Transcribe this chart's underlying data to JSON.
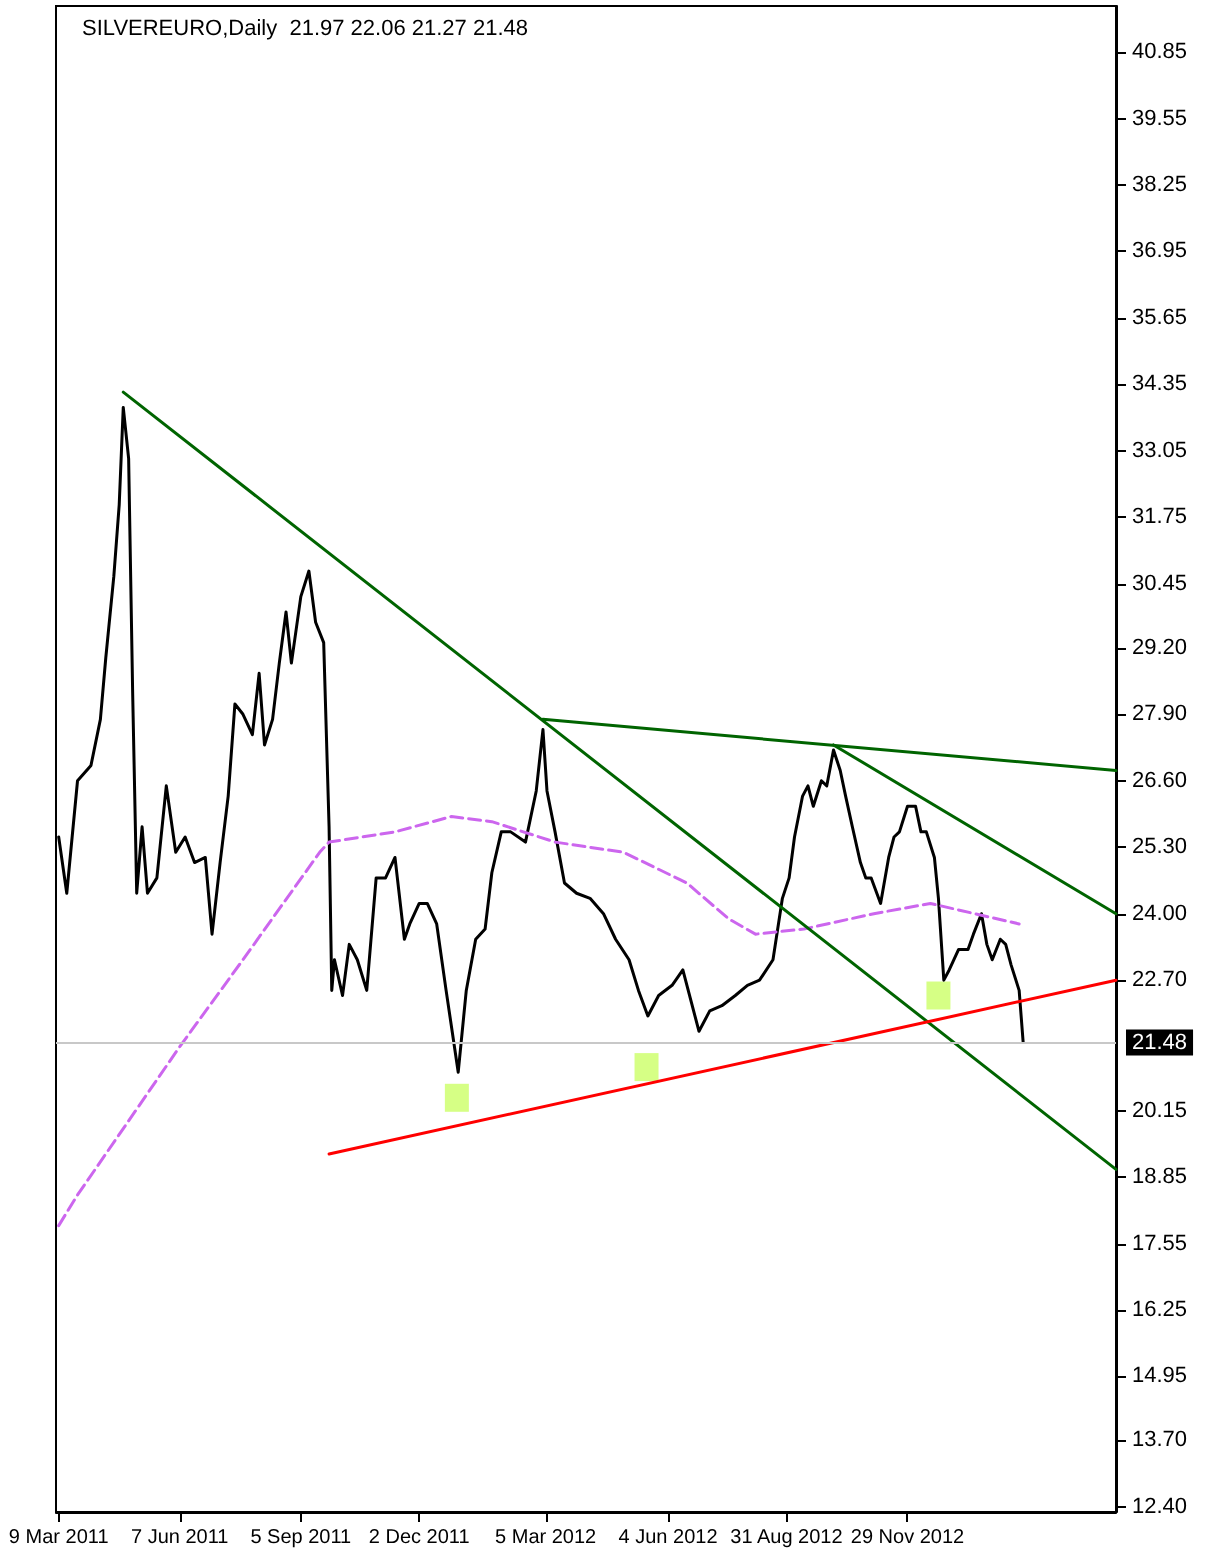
{
  "chart_data": {
    "type": "line",
    "title": "SILVEREURO,Daily  21.97 22.06 21.27 21.48",
    "xlim": [
      "2011-03-07",
      "2013-05-03"
    ],
    "xticks": [
      {
        "value": "2011-03-09",
        "label": "9 Mar 2011"
      },
      {
        "value": "2011-06-07",
        "label": "7 Jun 2011"
      },
      {
        "value": "2011-09-05",
        "label": "5 Sep 2011"
      },
      {
        "value": "2011-12-02",
        "label": "2 Dec 2011"
      },
      {
        "value": "2012-03-05",
        "label": "5 Mar 2012"
      },
      {
        "value": "2012-06-04",
        "label": "4 Jun 2012"
      },
      {
        "value": "2012-08-31",
        "label": "31 Aug 2012"
      },
      {
        "value": "2012-11-29",
        "label": "29 Nov 2012"
      }
    ],
    "ylim": [
      12.3,
      41.75
    ],
    "yticks": [
      {
        "value": 12.4,
        "label": "12.40"
      },
      {
        "value": 13.7,
        "label": "13.70"
      },
      14.95,
      16.25,
      17.55,
      18.85,
      20.15,
      {
        "value": 22.7,
        "label": "22.70"
      },
      {
        "value": 24,
        "label": "24.00"
      },
      {
        "value": 25.3,
        "label": "25.30"
      },
      {
        "value": 26.6,
        "label": "26.60"
      },
      {
        "value": 27.9,
        "label": "27.90"
      },
      {
        "value": 29.2,
        "label": "29.20"
      },
      30.45,
      31.75,
      33.05,
      34.35,
      35.65,
      36.95,
      38.25,
      39.55,
      40.85
    ],
    "marker": "none",
    "ref_lines": [
      {
        "axis": "y",
        "value": 21.48,
        "label": "21.48",
        "color": "#c8c8c8"
      }
    ],
    "series": [
      {
        "color": "#000000",
        "x": [
          "2011-03-09",
          "2011-03-15",
          "2011-03-23",
          "2011-04-02",
          "2011-04-09",
          "2011-04-13",
          "2011-04-19",
          "2011-04-23",
          "2011-04-26",
          "2011-04-30",
          "2011-05-03",
          "2011-05-06",
          "2011-05-10",
          "2011-05-14",
          "2011-05-21",
          "2011-05-28",
          "2011-06-04",
          "2011-06-11",
          "2011-06-18",
          "2011-06-26",
          "2011-07-01",
          "2011-07-07",
          "2011-07-13",
          "2011-07-18",
          "2011-07-24",
          "2011-07-31",
          "2011-08-05",
          "2011-08-09",
          "2011-08-15",
          "2011-08-20",
          "2011-08-25",
          "2011-08-29",
          "2011-09-05",
          "2011-09-11",
          "2011-09-16",
          "2011-09-22",
          "2011-09-26",
          "2011-09-28",
          "2011-09-30",
          "2011-10-06",
          "2011-10-11",
          "2011-10-17",
          "2011-10-24",
          "2011-10-31",
          "2011-11-07",
          "2011-11-14",
          "2011-11-21",
          "2011-11-25",
          "2011-12-02",
          "2011-12-08",
          "2011-12-15",
          "2011-12-22",
          "2011-12-31",
          "2012-01-06",
          "2012-01-13",
          "2012-01-20",
          "2012-01-25",
          "2012-02-01",
          "2012-02-08",
          "2012-02-19",
          "2012-02-27",
          "2012-03-03",
          "2012-03-06",
          "2012-03-12",
          "2012-03-19",
          "2012-03-28",
          "2012-04-07",
          "2012-04-17",
          "2012-04-26",
          "2012-05-06",
          "2012-05-13",
          "2012-05-20",
          "2012-05-28",
          "2012-06-07",
          "2012-06-15",
          "2012-06-27",
          "2012-07-05",
          "2012-07-14",
          "2012-07-24",
          "2012-08-02",
          "2012-08-11",
          "2012-08-21",
          "2012-08-28",
          "2012-09-02",
          "2012-09-06",
          "2012-09-12",
          "2012-09-16",
          "2012-09-20",
          "2012-09-26",
          "2012-09-30",
          "2012-10-05",
          "2012-10-10",
          "2012-10-14",
          "2012-10-19",
          "2012-10-25",
          "2012-10-29",
          "2012-11-02",
          "2012-11-09",
          "2012-11-15",
          "2012-11-19",
          "2012-11-23",
          "2012-11-29",
          "2012-12-05",
          "2012-12-09",
          "2012-12-13",
          "2012-12-19",
          "2012-12-22",
          "2012-12-26",
          "2012-12-30",
          "2013-01-06",
          "2013-01-13",
          "2013-01-17",
          "2013-01-23",
          "2013-01-27",
          "2013-01-31",
          "2013-02-06",
          "2013-02-10",
          "2013-02-14",
          "2013-02-20",
          "2013-02-23"
        ],
        "values": [
          25.5,
          24.4,
          26.6,
          26.9,
          27.8,
          29.0,
          30.6,
          32.0,
          33.9,
          32.9,
          28.3,
          24.4,
          25.7,
          24.4,
          24.7,
          26.5,
          25.2,
          25.5,
          25.0,
          25.1,
          23.6,
          25.0,
          26.3,
          28.1,
          27.9,
          27.5,
          28.7,
          27.3,
          27.8,
          28.9,
          29.9,
          28.9,
          30.2,
          30.7,
          29.7,
          29.3,
          25.7,
          22.5,
          23.1,
          22.4,
          23.4,
          23.1,
          22.5,
          24.7,
          24.7,
          25.1,
          23.5,
          23.8,
          24.2,
          24.2,
          23.8,
          22.5,
          20.9,
          22.5,
          23.5,
          23.7,
          24.8,
          25.6,
          25.6,
          25.4,
          26.4,
          27.6,
          26.4,
          25.6,
          24.6,
          24.4,
          24.3,
          24.0,
          23.5,
          23.1,
          22.5,
          22.0,
          22.4,
          22.6,
          22.9,
          21.7,
          22.1,
          22.2,
          22.4,
          22.6,
          22.7,
          23.1,
          24.3,
          24.7,
          25.5,
          26.3,
          26.5,
          26.1,
          26.6,
          26.5,
          27.2,
          26.8,
          26.3,
          25.7,
          25.0,
          24.7,
          24.7,
          24.2,
          25.1,
          25.5,
          25.6,
          26.1,
          26.1,
          25.6,
          25.6,
          25.1,
          24.3,
          22.7,
          22.9,
          23.3,
          23.3,
          23.6,
          24.0,
          23.4,
          23.1,
          23.5,
          23.4,
          23.0,
          22.5,
          21.48
        ]
      },
      {
        "type": "line",
        "color": "#cc66ee",
        "line_style": "dashed",
        "x": [
          "2011-03-09",
          "2011-03-23",
          "2011-06-07",
          "2011-07-24",
          "2011-09-19",
          "2011-09-26",
          "2011-11-14",
          "2011-12-26",
          "2012-01-25",
          "2012-03-12",
          "2012-05-02",
          "2012-06-18",
          "2012-07-19",
          "2012-08-08",
          "2012-09-13",
          "2012-11-04",
          "2012-12-16",
          "2013-02-20"
        ],
        "values": [
          17.9,
          18.5,
          21.4,
          23.1,
          25.2,
          25.4,
          25.6,
          25.9,
          25.8,
          25.4,
          25.2,
          24.6,
          23.9,
          23.6,
          23.7,
          24.0,
          24.2,
          23.8
        ]
      },
      {
        "type": "line",
        "color": "#006400",
        "x": [
          "2011-04-26",
          "2013-05-03"
        ],
        "values": [
          34.2,
          19.0
        ]
      },
      {
        "type": "line",
        "color": "#006400",
        "x": [
          "2012-03-03",
          "2013-05-03"
        ],
        "values": [
          27.8,
          26.8
        ]
      },
      {
        "type": "line",
        "color": "#006400",
        "x": [
          "2012-10-05",
          "2013-05-03"
        ],
        "values": [
          27.3,
          24.0
        ]
      },
      {
        "type": "line",
        "color": "#ff0000",
        "x": [
          "2011-09-26",
          "2013-05-03"
        ],
        "values": [
          19.3,
          22.7
        ]
      },
      {
        "type": "scatter",
        "marker": "square",
        "color": "#ccff66",
        "x": [
          "2011-12-30",
          "2012-05-19",
          "2012-12-22"
        ],
        "values": [
          20.4,
          21.0,
          22.4
        ]
      }
    ]
  }
}
